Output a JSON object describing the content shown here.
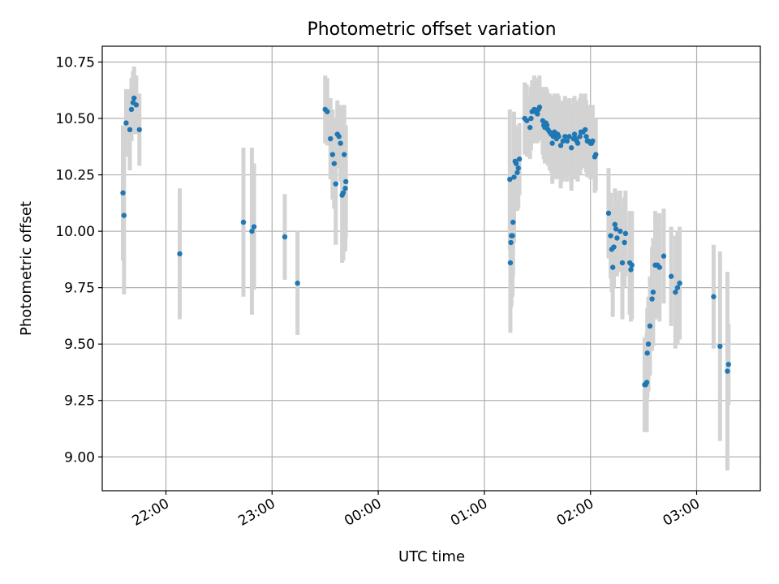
{
  "chart_data": {
    "type": "scatter",
    "title": "Photometric offset variation",
    "xlabel": "UTC time",
    "ylabel": "Photometric offset",
    "grid": true,
    "x_unit": "hours UTC (values >= 24 are times after midnight)",
    "xlim": [
      21.4,
      27.6
    ],
    "ylim": [
      8.85,
      10.82
    ],
    "x_ticks": [
      {
        "value": 22,
        "label": "22:00"
      },
      {
        "value": 23,
        "label": "23:00"
      },
      {
        "value": 24,
        "label": "00:00"
      },
      {
        "value": 25,
        "label": "01:00"
      },
      {
        "value": 26,
        "label": "02:00"
      },
      {
        "value": 27,
        "label": "03:00"
      }
    ],
    "y_ticks": [
      {
        "value": 9.0,
        "label": "9.00"
      },
      {
        "value": 9.25,
        "label": "9.25"
      },
      {
        "value": 9.5,
        "label": "9.50"
      },
      {
        "value": 9.75,
        "label": "9.75"
      },
      {
        "value": 10.0,
        "label": "10.00"
      },
      {
        "value": 10.25,
        "label": "10.25"
      },
      {
        "value": 10.5,
        "label": "10.50"
      },
      {
        "value": 10.75,
        "label": "10.75"
      }
    ],
    "colors": {
      "points": "#1f77b4",
      "error_bars": "#d3d3d3",
      "grid": "#b0b0b0"
    },
    "series": [
      {
        "points": [
          [
            21.595,
            10.17,
            0.3
          ],
          [
            21.605,
            10.07,
            0.35
          ],
          [
            21.625,
            10.48,
            0.15
          ],
          [
            21.66,
            10.45,
            0.18
          ],
          [
            21.675,
            10.54,
            0.14
          ],
          [
            21.69,
            10.57,
            0.14
          ],
          [
            21.7,
            10.59,
            0.14
          ],
          [
            21.72,
            10.56,
            0.13
          ],
          [
            21.75,
            10.45,
            0.16
          ],
          [
            22.13,
            9.9,
            0.29
          ],
          [
            22.73,
            10.04,
            0.33
          ],
          [
            22.81,
            10.0,
            0.37
          ],
          [
            22.83,
            10.02,
            0.28
          ],
          [
            23.12,
            9.975,
            0.19
          ],
          [
            23.24,
            9.77,
            0.23
          ],
          [
            23.5,
            10.54,
            0.15
          ],
          [
            23.52,
            10.53,
            0.15
          ],
          [
            23.55,
            10.41,
            0.18
          ],
          [
            23.57,
            10.34,
            0.2
          ],
          [
            23.585,
            10.3,
            0.2
          ],
          [
            23.6,
            10.21,
            0.27
          ],
          [
            23.615,
            10.43,
            0.15
          ],
          [
            23.63,
            10.42,
            0.13
          ],
          [
            23.645,
            10.39,
            0.17
          ],
          [
            23.66,
            10.16,
            0.3
          ],
          [
            23.67,
            10.17,
            0.3
          ],
          [
            23.68,
            10.34,
            0.22
          ],
          [
            23.69,
            10.19,
            0.28
          ],
          [
            23.695,
            10.22,
            0.25
          ],
          [
            25.24,
            10.23,
            0.31
          ],
          [
            25.245,
            9.86,
            0.31
          ],
          [
            25.25,
            9.95,
            0.29
          ],
          [
            25.255,
            9.98,
            0.31
          ],
          [
            25.265,
            9.98,
            0.27
          ],
          [
            25.27,
            10.04,
            0.24
          ],
          [
            25.28,
            10.24,
            0.29
          ],
          [
            25.29,
            10.31,
            0.16
          ],
          [
            25.3,
            10.3,
            0.16
          ],
          [
            25.31,
            10.26,
            0.17
          ],
          [
            25.32,
            10.28,
            0.18
          ],
          [
            25.33,
            10.32,
            0.16
          ],
          [
            25.38,
            10.5,
            0.16
          ],
          [
            25.4,
            10.49,
            0.16
          ],
          [
            25.43,
            10.46,
            0.14
          ],
          [
            25.44,
            10.5,
            0.14
          ],
          [
            25.45,
            10.53,
            0.14
          ],
          [
            25.47,
            10.54,
            0.15
          ],
          [
            25.48,
            10.53,
            0.14
          ],
          [
            25.5,
            10.52,
            0.13
          ],
          [
            25.51,
            10.54,
            0.14
          ],
          [
            25.52,
            10.55,
            0.14
          ],
          [
            25.55,
            10.49,
            0.15
          ],
          [
            25.56,
            10.47,
            0.15
          ],
          [
            25.57,
            10.46,
            0.16
          ],
          [
            25.58,
            10.48,
            0.16
          ],
          [
            25.59,
            10.47,
            0.16
          ],
          [
            25.6,
            10.45,
            0.16
          ],
          [
            25.615,
            10.44,
            0.17
          ],
          [
            25.63,
            10.43,
            0.17
          ],
          [
            25.64,
            10.39,
            0.18
          ],
          [
            25.65,
            10.42,
            0.18
          ],
          [
            25.66,
            10.44,
            0.17
          ],
          [
            25.67,
            10.43,
            0.17
          ],
          [
            25.68,
            10.41,
            0.18
          ],
          [
            25.69,
            10.43,
            0.18
          ],
          [
            25.7,
            10.42,
            0.18
          ],
          [
            25.72,
            10.38,
            0.19
          ],
          [
            25.74,
            10.4,
            0.18
          ],
          [
            25.76,
            10.42,
            0.18
          ],
          [
            25.78,
            10.4,
            0.18
          ],
          [
            25.8,
            10.42,
            0.17
          ],
          [
            25.82,
            10.37,
            0.19
          ],
          [
            25.84,
            10.41,
            0.18
          ],
          [
            25.85,
            10.43,
            0.17
          ],
          [
            25.86,
            10.41,
            0.17
          ],
          [
            25.87,
            10.4,
            0.17
          ],
          [
            25.88,
            10.39,
            0.17
          ],
          [
            25.9,
            10.42,
            0.17
          ],
          [
            25.91,
            10.44,
            0.17
          ],
          [
            25.93,
            10.44,
            0.16
          ],
          [
            25.95,
            10.45,
            0.16
          ],
          [
            25.96,
            10.42,
            0.16
          ],
          [
            25.97,
            10.4,
            0.16
          ],
          [
            25.98,
            10.4,
            0.16
          ],
          [
            26.0,
            10.39,
            0.16
          ],
          [
            26.01,
            10.39,
            0.16
          ],
          [
            26.02,
            10.4,
            0.16
          ],
          [
            26.04,
            10.33,
            0.16
          ],
          [
            26.05,
            10.34,
            0.16
          ],
          [
            26.17,
            10.08,
            0.2
          ],
          [
            26.19,
            9.98,
            0.19
          ],
          [
            26.2,
            9.92,
            0.19
          ],
          [
            26.21,
            9.84,
            0.22
          ],
          [
            26.22,
            9.93,
            0.18
          ],
          [
            26.23,
            10.03,
            0.16
          ],
          [
            26.24,
            10.01,
            0.17
          ],
          [
            26.25,
            9.97,
            0.17
          ],
          [
            26.28,
            10.0,
            0.18
          ],
          [
            26.3,
            9.86,
            0.25
          ],
          [
            26.32,
            9.95,
            0.2
          ],
          [
            26.33,
            9.99,
            0.19
          ],
          [
            26.37,
            9.86,
            0.23
          ],
          [
            26.38,
            9.83,
            0.23
          ],
          [
            26.39,
            9.85,
            0.24
          ],
          [
            26.51,
            9.32,
            0.21
          ],
          [
            26.52,
            9.32,
            0.21
          ],
          [
            26.53,
            9.33,
            0.22
          ],
          [
            26.535,
            9.46,
            0.2
          ],
          [
            26.545,
            9.5,
            0.21
          ],
          [
            26.56,
            9.58,
            0.22
          ],
          [
            26.58,
            9.7,
            0.23
          ],
          [
            26.59,
            9.73,
            0.24
          ],
          [
            26.61,
            9.85,
            0.24
          ],
          [
            26.63,
            9.85,
            0.23
          ],
          [
            26.65,
            9.84,
            0.24
          ],
          [
            26.69,
            9.89,
            0.21
          ],
          [
            26.76,
            9.8,
            0.22
          ],
          [
            26.8,
            9.73,
            0.25
          ],
          [
            26.82,
            9.75,
            0.25
          ],
          [
            26.84,
            9.77,
            0.25
          ],
          [
            27.16,
            9.71,
            0.23
          ],
          [
            27.22,
            9.49,
            0.42
          ],
          [
            27.29,
            9.38,
            0.44
          ],
          [
            27.3,
            9.41,
            0.18
          ]
        ]
      }
    ]
  }
}
